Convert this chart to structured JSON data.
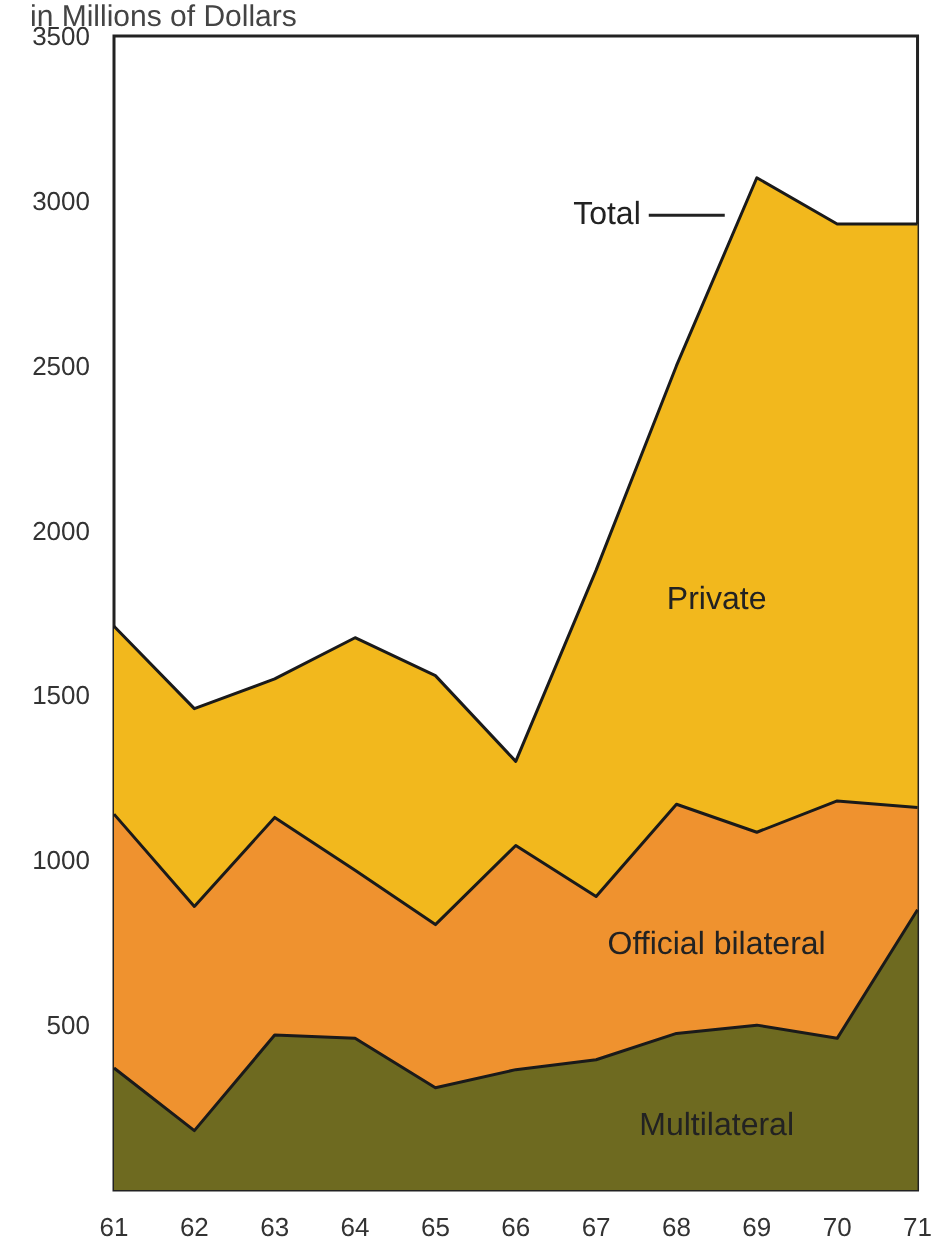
{
  "chart_data": {
    "type": "area",
    "stacked": true,
    "title": "in Millions of Dollars",
    "categories": [
      "61",
      "62",
      "63",
      "64",
      "65",
      "66",
      "67",
      "68",
      "69",
      "70",
      "71"
    ],
    "series": [
      {
        "name": "Multilateral",
        "color": "#6e6a20",
        "values": [
          370,
          180,
          470,
          460,
          310,
          365,
          395,
          475,
          500,
          460,
          850
        ]
      },
      {
        "name": "Official bilateral",
        "color": "#ef922f",
        "values": [
          770,
          680,
          660,
          510,
          495,
          680,
          495,
          695,
          585,
          720,
          310
        ]
      },
      {
        "name": "Private",
        "color": "#f2b81d",
        "values": [
          570,
          600,
          420,
          705,
          755,
          255,
          990,
          1330,
          1985,
          1750,
          1770
        ]
      }
    ],
    "annotations": [
      "Total"
    ],
    "ylim": [
      0,
      3500
    ],
    "yticks": [
      500,
      1000,
      1500,
      2000,
      2500,
      3000,
      3500
    ],
    "grid": false,
    "legend": false
  }
}
